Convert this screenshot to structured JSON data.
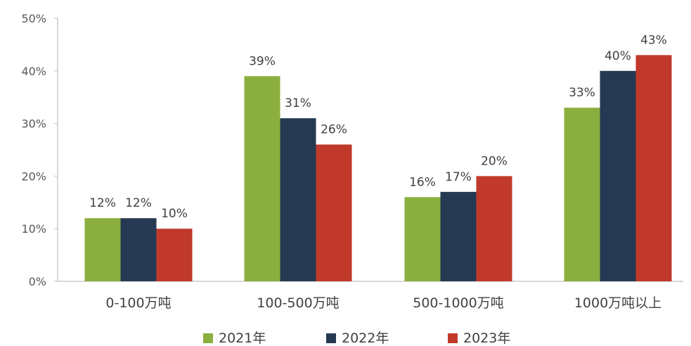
{
  "chart_data": {
    "type": "bar",
    "categories": [
      "0-100万吨",
      "100-500万吨",
      "500-1000万吨",
      "1000万吨以上"
    ],
    "series": [
      {
        "name": "2021年",
        "color": "#8BAF3E",
        "values": [
          12,
          39,
          16,
          33
        ]
      },
      {
        "name": "2022年",
        "color": "#253A52",
        "values": [
          12,
          31,
          17,
          40
        ]
      },
      {
        "name": "2023年",
        "color": "#C0392B",
        "values": [
          10,
          26,
          20,
          43
        ]
      }
    ],
    "data_labels": [
      [
        "12%",
        "39%",
        "16%",
        "33%"
      ],
      [
        "12%",
        "31%",
        "17%",
        "40%"
      ],
      [
        "10%",
        "26%",
        "20%",
        "43%"
      ]
    ],
    "y_ticks": [
      "0%",
      "10%",
      "20%",
      "30%",
      "40%",
      "50%"
    ],
    "ylim": [
      0,
      50
    ],
    "title": "",
    "xlabel": "",
    "ylabel": "",
    "grid": false,
    "legend_position": "bottom"
  }
}
